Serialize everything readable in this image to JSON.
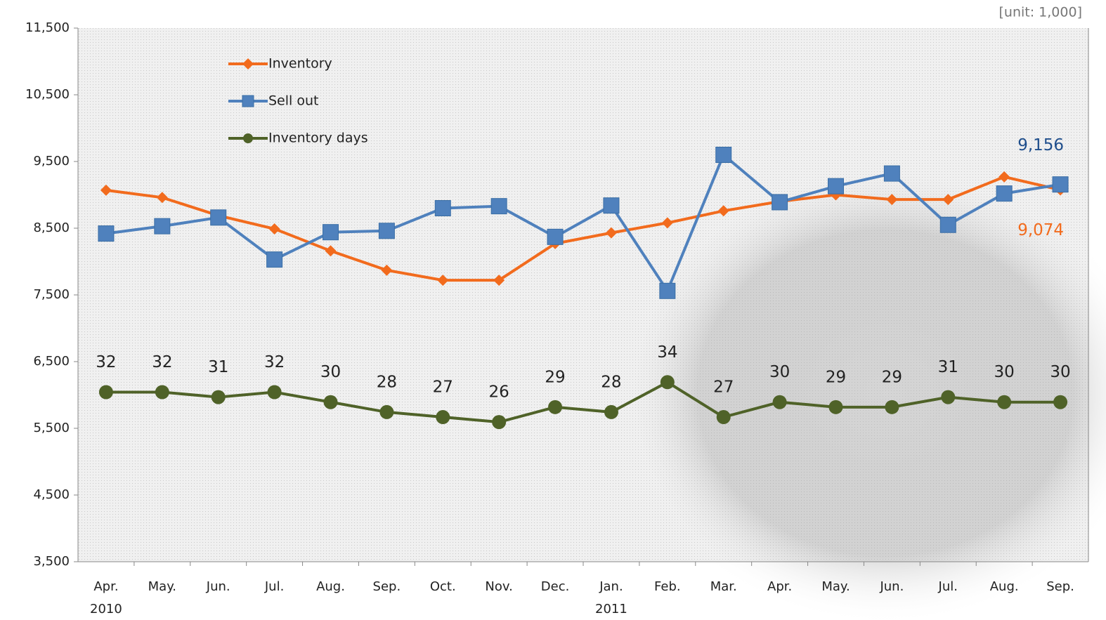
{
  "chart_data": {
    "type": "line",
    "unit_note": "[unit: 1,000]",
    "categories": [
      "Apr.",
      "May.",
      "Jun.",
      "Jul.",
      "Aug.",
      "Sep.",
      "Oct.",
      "Nov.",
      "Dec.",
      "Jan.",
      "Feb.",
      "Mar.",
      "Apr.",
      "May.",
      "Jun.",
      "Jul.",
      "Aug.",
      "Sep."
    ],
    "years": [
      "2010",
      null,
      null,
      null,
      null,
      null,
      null,
      null,
      null,
      "2011",
      null,
      null,
      null,
      null,
      null,
      null,
      null,
      null
    ],
    "ylim": [
      3500,
      11500
    ],
    "yticks": [
      {
        "value": 3500,
        "label": "3,500"
      },
      {
        "value": 4500,
        "label": "4,500"
      },
      {
        "value": 5500,
        "label": "5,500"
      },
      {
        "value": 6500,
        "label": "6,500"
      },
      {
        "value": 7500,
        "label": "7,500"
      },
      {
        "value": 8500,
        "label": "8,500"
      },
      {
        "value": 9500,
        "label": "9,500"
      },
      {
        "value": 10500,
        "label": "10,500"
      },
      {
        "value": 11500,
        "label": "11,500"
      }
    ],
    "y2lim": [
      -2,
      105
    ],
    "series": [
      {
        "name": "Inventory",
        "color": "#F26B1D",
        "marker": "diamond",
        "values": [
          9070,
          8960,
          8690,
          8490,
          8160,
          7870,
          7720,
          7720,
          8270,
          8430,
          8580,
          8760,
          8900,
          9000,
          8930,
          8930,
          9270,
          9074
        ],
        "value_labels": [
          null,
          null,
          null,
          null,
          null,
          null,
          null,
          null,
          null,
          null,
          null,
          null,
          null,
          null,
          null,
          null,
          null,
          "9,074"
        ]
      },
      {
        "name": "Sell out",
        "color": "#4F81BD",
        "marker": "square",
        "values": [
          8420,
          8530,
          8660,
          8030,
          8440,
          8460,
          8800,
          8830,
          8370,
          8840,
          7560,
          9600,
          8890,
          9130,
          9320,
          8550,
          9020,
          9156
        ],
        "value_labels": [
          null,
          null,
          null,
          null,
          null,
          null,
          null,
          null,
          null,
          null,
          null,
          null,
          null,
          null,
          null,
          null,
          null,
          "9,156"
        ]
      },
      {
        "name": "Inventory days",
        "color": "#4F6228",
        "marker": "circle",
        "axis": "y2",
        "show_values": true,
        "values": [
          32,
          32,
          31,
          32,
          30,
          28,
          27,
          26,
          29,
          28,
          34,
          27,
          30,
          29,
          29,
          31,
          30,
          30
        ]
      }
    ]
  }
}
